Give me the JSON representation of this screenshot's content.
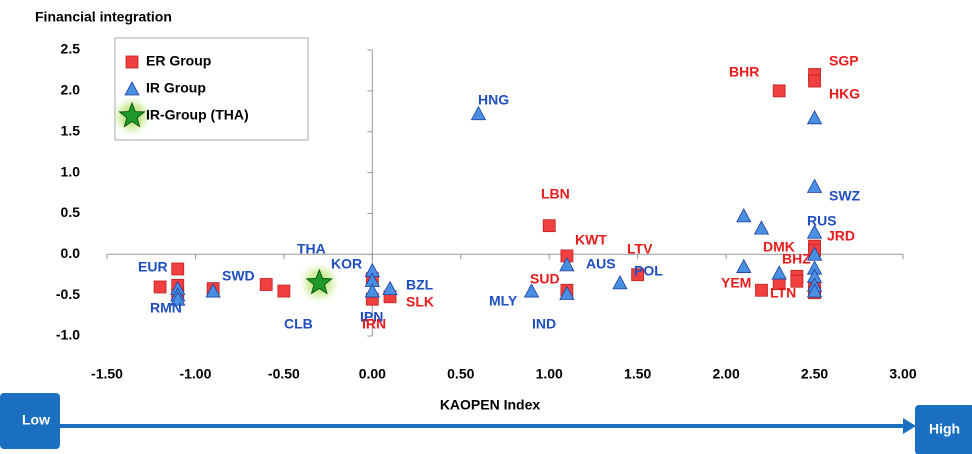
{
  "chart_data": {
    "type": "scatter",
    "y_label": "Financial integration",
    "x_label": "KAOPEN Index",
    "arrow_low": "Low",
    "arrow_high": "High",
    "xlim": [
      -1.5,
      3.0
    ],
    "ylim": [
      -1.0,
      2.5
    ],
    "xticks": [
      {
        "value": -1.5,
        "label": "-1.50"
      },
      {
        "value": -1.0,
        "label": "-1.00"
      },
      {
        "value": -0.5,
        "label": "-0.50"
      },
      {
        "value": 0,
        "label": "0.00"
      },
      {
        "value": 0.5,
        "label": "0.50"
      },
      {
        "value": 1.0,
        "label": "1.00"
      },
      {
        "value": 1.5,
        "label": "1.50"
      },
      {
        "value": 2.0,
        "label": "2.00"
      },
      {
        "value": 2.5,
        "label": "2.50"
      },
      {
        "value": 3.0,
        "label": "3.00"
      }
    ],
    "yticks": [
      {
        "value": -1.0,
        "label": "-1.0"
      },
      -0.5,
      {
        "value": 0,
        "label": "0.0"
      },
      0.5,
      {
        "value": 1.0,
        "label": "1.0"
      },
      1.5,
      {
        "value": 2.0,
        "label": "2.0"
      },
      2.5
    ],
    "legend": "upper left",
    "series": [
      {
        "name": "ER Group",
        "marker": "square",
        "color": "#f04040",
        "x": [
          -1.2,
          -1.1,
          -1.1,
          -1.1,
          -0.9,
          -0.6,
          -0.5,
          0,
          0,
          0.1,
          1.0,
          1.1,
          1.1,
          1.5,
          2.3,
          2.5,
          2.5,
          2.5,
          2.5,
          2.4,
          2.4,
          2.3,
          2.2,
          2.5,
          2.5
        ],
        "values": [
          -0.4,
          -0.18,
          -0.38,
          -0.5,
          -0.42,
          -0.37,
          -0.45,
          -0.3,
          -0.55,
          -0.52,
          0.35,
          -0.02,
          -0.44,
          -0.25,
          2.0,
          2.2,
          2.12,
          0.1,
          0.05,
          -0.27,
          -0.33,
          -0.36,
          -0.44,
          -0.42,
          -0.47
        ]
      },
      {
        "name": "IR Group",
        "marker": "triangle",
        "color": "#4a90e2",
        "x": [
          -1.1,
          -1.1,
          -1.1,
          -0.9,
          0,
          0,
          0,
          0.1,
          0.6,
          0.9,
          1.1,
          1.1,
          1.4,
          2.1,
          2.2,
          2.1,
          2.3,
          2.5,
          2.5,
          2.5,
          2.5,
          2.5,
          2.5,
          2.5,
          2.5
        ],
        "values": [
          -0.42,
          -0.5,
          -0.55,
          -0.45,
          -0.2,
          -0.32,
          -0.45,
          -0.42,
          1.72,
          -0.45,
          -0.13,
          -0.48,
          -0.35,
          0.47,
          0.32,
          -0.15,
          -0.23,
          1.67,
          0.83,
          0.27,
          0.0,
          -0.17,
          -0.27,
          -0.38,
          -0.45
        ]
      },
      {
        "name": "IR-Group (THA)",
        "marker": "star",
        "color": "#1f9a2a",
        "x": [
          -0.3
        ],
        "values": [
          -0.35
        ]
      }
    ],
    "annotations": [
      {
        "text": "SGP",
        "color": "#e81c1c"
      },
      {
        "text": "BHR",
        "color": "#e81c1c"
      },
      {
        "text": "HKG",
        "color": "#e81c1c"
      },
      {
        "text": "HNG",
        "color": "#1f4fbf"
      },
      {
        "text": "LBN",
        "color": "#e81c1c"
      },
      {
        "text": "SWZ",
        "color": "#1f4fbf"
      },
      {
        "text": "RUS",
        "color": "#1f4fbf"
      },
      {
        "text": "JRD",
        "color": "#e81c1c"
      },
      {
        "text": "KWT",
        "color": "#e81c1c"
      },
      {
        "text": "LTV",
        "color": "#e81c1c"
      },
      {
        "text": "DMK",
        "color": "#e81c1c"
      },
      {
        "text": "THA",
        "color": "#1f4fbf"
      },
      {
        "text": "KOR",
        "color": "#1f4fbf"
      },
      {
        "text": "EUR",
        "color": "#1f4fbf"
      },
      {
        "text": "AUS",
        "color": "#1f4fbf"
      },
      {
        "text": "SWD",
        "color": "#1f4fbf"
      },
      {
        "text": "BHZ",
        "color": "#e81c1c"
      },
      {
        "text": "POL",
        "color": "#1f4fbf"
      },
      {
        "text": "SUD",
        "color": "#e81c1c"
      },
      {
        "text": "YEM",
        "color": "#e81c1c"
      },
      {
        "text": "LTN",
        "color": "#e81c1c"
      },
      {
        "text": "BZL",
        "color": "#1f4fbf"
      },
      {
        "text": "SLK",
        "color": "#e81c1c"
      },
      {
        "text": "RMN",
        "color": "#1f4fbf"
      },
      {
        "text": "MLY",
        "color": "#1f4fbf"
      },
      {
        "text": "IPN",
        "color": "#1f4fbf"
      },
      {
        "text": "IRN",
        "color": "#e81c1c"
      },
      {
        "text": "CLB",
        "color": "#1f4fbf"
      },
      {
        "text": "IND",
        "color": "#1f4fbf"
      }
    ]
  }
}
